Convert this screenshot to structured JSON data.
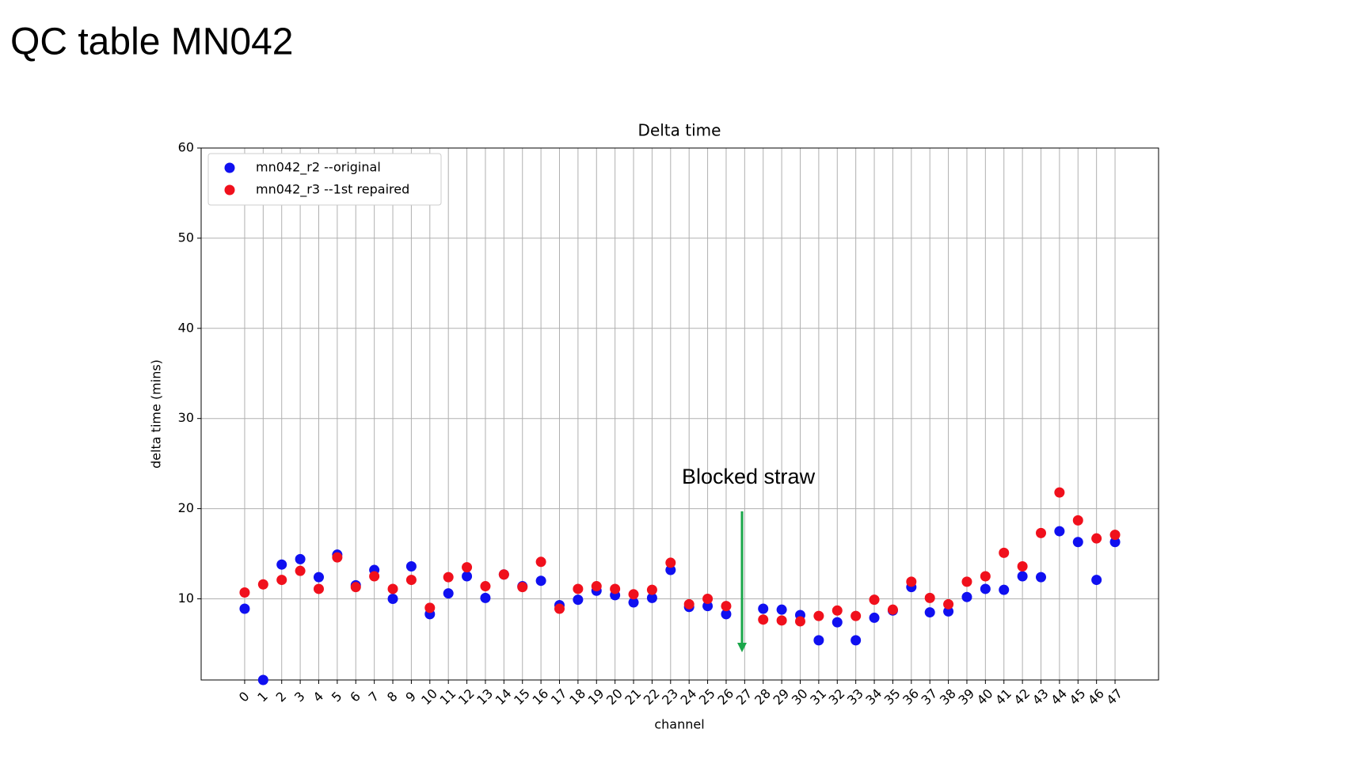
{
  "slide_title": "QC table MN042",
  "chart_data": {
    "type": "scatter",
    "title": "Delta time",
    "x_label": "channel",
    "y_label": "delta time (mins)",
    "x": [
      0,
      1,
      2,
      3,
      4,
      5,
      6,
      7,
      8,
      9,
      10,
      11,
      12,
      13,
      14,
      15,
      16,
      17,
      18,
      19,
      20,
      21,
      22,
      23,
      24,
      25,
      26,
      27,
      28,
      29,
      30,
      31,
      32,
      33,
      34,
      35,
      36,
      37,
      38,
      39,
      40,
      41,
      42,
      43,
      44,
      45,
      46,
      47
    ],
    "series": [
      {
        "name": "mn042_r2 --original",
        "color": "#1010f0",
        "values": [
          8.9,
          1.0,
          13.8,
          14.4,
          12.4,
          14.9,
          11.5,
          13.2,
          10.0,
          13.6,
          8.3,
          10.6,
          12.5,
          10.1,
          12.7,
          11.4,
          12.0,
          9.3,
          9.9,
          10.9,
          10.4,
          9.6,
          10.1,
          13.2,
          9.1,
          9.2,
          8.3,
          null,
          8.9,
          8.8,
          8.2,
          5.4,
          7.4,
          5.4,
          7.9,
          8.7,
          11.3,
          8.5,
          8.6,
          10.2,
          11.1,
          11.0,
          12.5,
          12.4,
          17.5,
          16.3,
          12.1,
          16.3
        ]
      },
      {
        "name": "mn042_r3 --1st repaired",
        "color": "#f0101c",
        "values": [
          10.7,
          11.6,
          12.1,
          13.1,
          11.1,
          14.6,
          11.3,
          12.5,
          11.1,
          12.1,
          9.0,
          12.4,
          13.5,
          11.4,
          12.7,
          11.3,
          14.1,
          8.9,
          11.1,
          11.4,
          11.1,
          10.5,
          11.0,
          14.0,
          9.4,
          10.0,
          9.2,
          null,
          7.7,
          7.6,
          7.5,
          8.1,
          8.7,
          8.1,
          9.9,
          8.8,
          11.9,
          10.1,
          9.4,
          11.9,
          12.5,
          15.1,
          13.6,
          17.3,
          21.8,
          18.7,
          16.7,
          17.1
        ]
      }
    ],
    "xlim": [
      -2.35,
      49.35
    ],
    "xticks": [
      0,
      1,
      2,
      3,
      4,
      5,
      6,
      7,
      8,
      9,
      10,
      11,
      12,
      13,
      14,
      15,
      16,
      17,
      18,
      19,
      20,
      21,
      22,
      23,
      24,
      25,
      26,
      27,
      28,
      29,
      30,
      31,
      32,
      33,
      34,
      35,
      36,
      37,
      38,
      39,
      40,
      41,
      42,
      43,
      44,
      45,
      46,
      47
    ],
    "ylim": [
      1,
      60
    ],
    "yticks": [
      10,
      20,
      30,
      40,
      50,
      60
    ],
    "grid": true,
    "legend": "upper left",
    "annotation": {
      "text": "Blocked straw",
      "color": "#1aa64a"
    }
  }
}
